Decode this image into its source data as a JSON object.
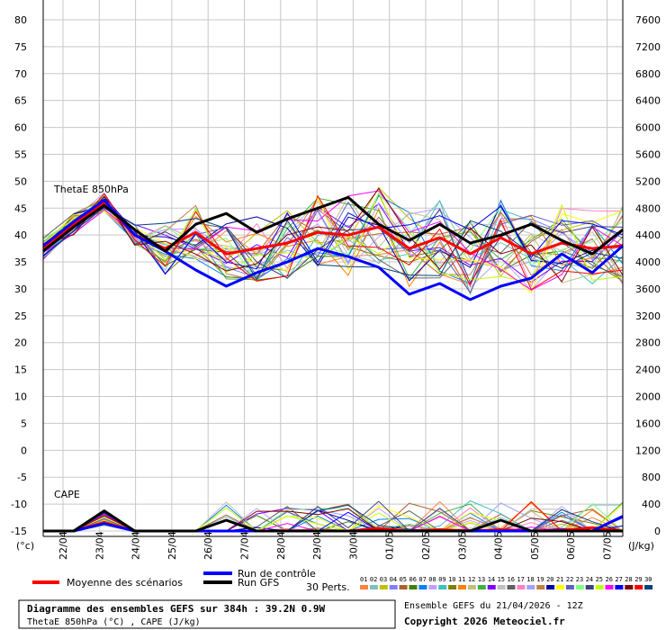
{
  "chart_data": {
    "type": "line",
    "left_axis": {
      "unit": "(°c)",
      "ticks": [
        80,
        75,
        70,
        65,
        60,
        55,
        50,
        45,
        40,
        35,
        30,
        25,
        20,
        15,
        10,
        5,
        0,
        -5,
        -10,
        -15
      ],
      "ylim": [
        -15,
        80
      ]
    },
    "right_axis": {
      "unit": "(J/kg)",
      "ticks": [
        7600,
        7200,
        6800,
        6400,
        6000,
        5600,
        5200,
        4800,
        4400,
        4000,
        3600,
        3200,
        2800,
        2400,
        2000,
        1600,
        1200,
        800,
        400,
        0
      ],
      "ylim": [
        0,
        7600
      ]
    },
    "x_ticks": [
      "22/04",
      "23/04",
      "24/04",
      "25/04",
      "26/04",
      "27/04",
      "28/04",
      "29/04",
      "30/04",
      "01/05",
      "02/05",
      "03/05",
      "04/05",
      "05/05",
      "06/05",
      "07/05"
    ],
    "grid": true,
    "panels": [
      {
        "label": "ThetaE 850hPa",
        "unit": "°C",
        "series": [
          {
            "name": "Moyenne des scénarios",
            "color": "#ff0000",
            "values": [
              37.5,
              42,
              46,
              40,
              37.5,
              40.5,
              36.5,
              37.5,
              38.5,
              40.5,
              40,
              41.5,
              37.5,
              39.5,
              36.5,
              39.5,
              36.5,
              38.5,
              37.5,
              38
            ]
          },
          {
            "name": "Run de contrôle",
            "color": "#0000ff",
            "values": [
              38,
              42.5,
              46.5,
              40,
              37,
              33.5,
              30.5,
              33,
              35,
              37.5,
              36,
              34,
              29,
              31,
              28,
              30.5,
              32,
              36.5,
              33,
              38
            ]
          },
          {
            "name": "Run GFS",
            "color": "#000000",
            "values": [
              37,
              41.5,
              45.5,
              41,
              37,
              42,
              44,
              40.5,
              43,
              45,
              47,
              42,
              39,
              42,
              38.5,
              40,
              42,
              39,
              36.5,
              41
            ]
          }
        ]
      },
      {
        "label": "CAPE",
        "unit": "J/kg",
        "series": [
          {
            "name": "Moyenne des scénarios",
            "color": "#ff0000",
            "values": [
              0,
              0,
              130,
              0,
              0,
              0,
              0,
              0,
              0,
              0,
              0,
              40,
              0,
              20,
              0,
              20,
              0,
              10,
              50,
              0
            ]
          },
          {
            "name": "Run de contrôle",
            "color": "#0000ff",
            "values": [
              0,
              0,
              110,
              0,
              0,
              0,
              0,
              0,
              0,
              0,
              0,
              0,
              0,
              0,
              0,
              0,
              0,
              0,
              0,
              220
            ]
          },
          {
            "name": "Run GFS",
            "color": "#000000",
            "values": [
              0,
              0,
              300,
              0,
              0,
              0,
              160,
              0,
              0,
              0,
              0,
              0,
              0,
              0,
              0,
              160,
              0,
              0,
              0,
              0
            ]
          }
        ]
      }
    ],
    "perturbations": {
      "count_label": "30 Perts.",
      "numbers": [
        "01",
        "02",
        "03",
        "04",
        "05",
        "06",
        "07",
        "08",
        "09",
        "10",
        "11",
        "12",
        "13",
        "14",
        "15",
        "16",
        "17",
        "18",
        "19",
        "20",
        "21",
        "22",
        "23",
        "24",
        "25",
        "26",
        "27",
        "28",
        "29",
        "30"
      ],
      "colors": [
        "#ff8040",
        "#80c0c0",
        "#c0c000",
        "#8080ff",
        "#b06030",
        "#408000",
        "#0080ff",
        "#c0a0ff",
        "#40c0c0",
        "#808000",
        "#ff8000",
        "#c0c080",
        "#40b040",
        "#8000ff",
        "#c0c0c0",
        "#606060",
        "#ff80c0",
        "#a0a0ff",
        "#c08040",
        "#0000a0",
        "#ffff00",
        "#6060c0",
        "#80ff80",
        "#404080",
        "#c0ff00",
        "#ff00ff",
        "#0000ff",
        "#800000",
        "#ff0000",
        "#004080"
      ]
    }
  },
  "legend": {
    "mean_label": "Moyenne des scénarios",
    "control_label": "Run de contrôle",
    "gfs_label": "Run GFS"
  },
  "footer": {
    "title": "Diagramme des ensembles GEFS sur 384h : 39.2N 0.9W",
    "subtitle": "ThetaE 850hPa (°C) , CAPE (J/kg)",
    "run_info": "Ensemble GEFS du 21/04/2026 - 12Z",
    "copyright": "Copyright 2026 Meteociel.fr"
  }
}
